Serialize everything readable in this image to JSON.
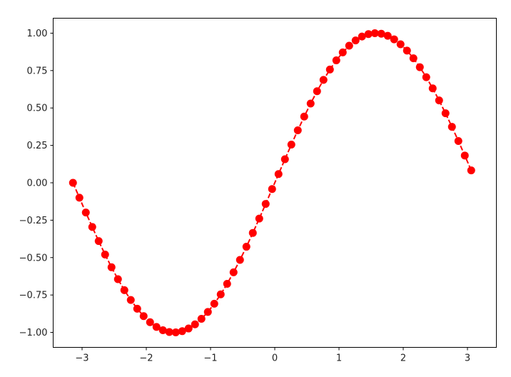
{
  "chart_data": {
    "type": "line",
    "title": "",
    "xlabel": "",
    "ylabel": "",
    "xlim": [
      -3.45,
      3.45
    ],
    "ylim": [
      -1.1,
      1.1
    ],
    "grid": false,
    "x_ticks": [
      "−3",
      "−2",
      "−1",
      "0",
      "1",
      "2",
      "3"
    ],
    "x_tick_values": [
      -3,
      -2,
      -1,
      0,
      1,
      2,
      3
    ],
    "y_ticks": [
      "−1.00",
      "−0.75",
      "−0.50",
      "−0.25",
      "0.00",
      "0.25",
      "0.50",
      "0.75",
      "1.00"
    ],
    "y_tick_values": [
      -1,
      -0.75,
      -0.5,
      -0.25,
      0,
      0.25,
      0.5,
      0.75,
      1
    ],
    "series": [
      {
        "color": "#ff0000",
        "line_style": "dashed",
        "marker": "circle",
        "x": [
          -3.1416,
          -3.0416,
          -2.9416,
          -2.8416,
          -2.7416,
          -2.6416,
          -2.5416,
          -2.4416,
          -2.3416,
          -2.2416,
          -2.1416,
          -2.0416,
          -1.9416,
          -1.8416,
          -1.7416,
          -1.6416,
          -1.5416,
          -1.4416,
          -1.3416,
          -1.2416,
          -1.1416,
          -1.0416,
          -0.9416,
          -0.8416,
          -0.7416,
          -0.6416,
          -0.5416,
          -0.4416,
          -0.3416,
          -0.2416,
          -0.1416,
          -0.0416,
          0.0584,
          0.1584,
          0.2584,
          0.3584,
          0.4584,
          0.5584,
          0.6584,
          0.7584,
          0.8584,
          0.9584,
          1.0584,
          1.1584,
          1.2584,
          1.3584,
          1.4584,
          1.5584,
          1.6584,
          1.7584,
          1.8584,
          1.9584,
          2.0584,
          2.1584,
          2.2584,
          2.3584,
          2.4584,
          2.5584,
          2.6584,
          2.7584,
          2.8584,
          2.9584,
          3.0584
        ],
        "y": [
          0.0,
          -0.0998,
          -0.1987,
          -0.2955,
          -0.3894,
          -0.4794,
          -0.5646,
          -0.6442,
          -0.7174,
          -0.7833,
          -0.8415,
          -0.8912,
          -0.932,
          -0.9636,
          -0.9854,
          -0.9975,
          -0.9996,
          -0.9917,
          -0.9738,
          -0.9463,
          -0.9093,
          -0.8632,
          -0.8085,
          -0.7457,
          -0.6755,
          -0.5985,
          -0.5155,
          -0.4274,
          -0.335,
          -0.2392,
          -0.1411,
          -0.0416,
          0.0584,
          0.1577,
          0.2555,
          0.3508,
          0.4425,
          0.5298,
          0.6119,
          0.6878,
          0.7568,
          0.8183,
          0.8716,
          0.9162,
          0.9516,
          0.9775,
          0.9937,
          0.9999,
          0.9962,
          0.9825,
          0.9589,
          0.9258,
          0.8835,
          0.8323,
          0.7728,
          0.7055,
          0.6313,
          0.5507,
          0.4646,
          0.3739,
          0.2794,
          0.1822,
          0.0831
        ]
      }
    ]
  }
}
